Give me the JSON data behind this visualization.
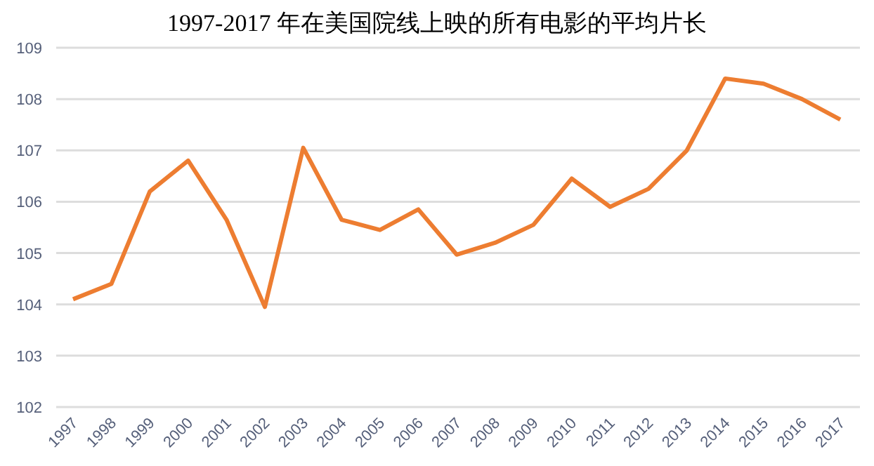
{
  "chart_data": {
    "type": "line",
    "title": "1997-2017 年在美国院线上映的所有电影的平均片长",
    "categories": [
      "1997",
      "1998",
      "1999",
      "2000",
      "2001",
      "2002",
      "2003",
      "2004",
      "2005",
      "2006",
      "2007",
      "2008",
      "2009",
      "2010",
      "2011",
      "2012",
      "2013",
      "2014",
      "2015",
      "2016",
      "2017"
    ],
    "series": [
      {
        "color": "#ed7d31",
        "values": [
          104.1,
          104.4,
          106.2,
          106.8,
          105.65,
          103.95,
          107.05,
          105.65,
          105.45,
          105.85,
          104.97,
          105.2,
          105.55,
          106.45,
          105.9,
          106.25,
          107.0,
          108.4,
          108.3,
          108.0,
          107.6
        ]
      }
    ],
    "ylim": [
      102,
      109
    ],
    "yticks": [
      102,
      103,
      104,
      105,
      106,
      107,
      108,
      109
    ],
    "grid": "y",
    "marker": "none",
    "line_style": "solid"
  }
}
